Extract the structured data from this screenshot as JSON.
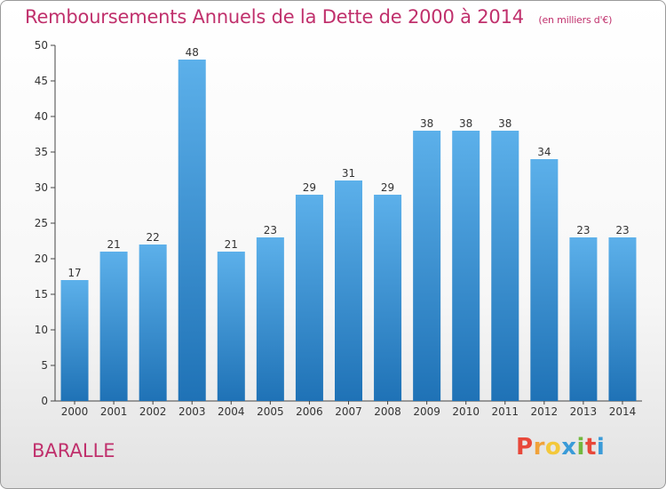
{
  "header": {
    "title": "Remboursements Annuels de la Dette de 2000 à 2014",
    "unit": "(en milliers d'€)"
  },
  "footer": {
    "commune": "BARALLE",
    "logo_text": "Proxiti"
  },
  "colors": {
    "title": "#c0306c",
    "bar_top": "#5cb0ea",
    "bar_bottom": "#1f72b6"
  },
  "chart_data": {
    "type": "bar",
    "title": "Remboursements Annuels de la Dette de 2000 à 2014",
    "ylabel": "en milliers d'€",
    "xlabel": "",
    "categories": [
      "2000",
      "2001",
      "2002",
      "2003",
      "2004",
      "2005",
      "2006",
      "2007",
      "2008",
      "2009",
      "2010",
      "2011",
      "2012",
      "2013",
      "2014"
    ],
    "values": [
      17,
      21,
      22,
      48,
      21,
      23,
      29,
      31,
      29,
      38,
      38,
      38,
      34,
      23,
      23
    ],
    "ylim": [
      0,
      50
    ],
    "yticks": [
      0,
      5,
      10,
      15,
      20,
      25,
      30,
      35,
      40,
      45,
      50
    ],
    "grid": false
  }
}
